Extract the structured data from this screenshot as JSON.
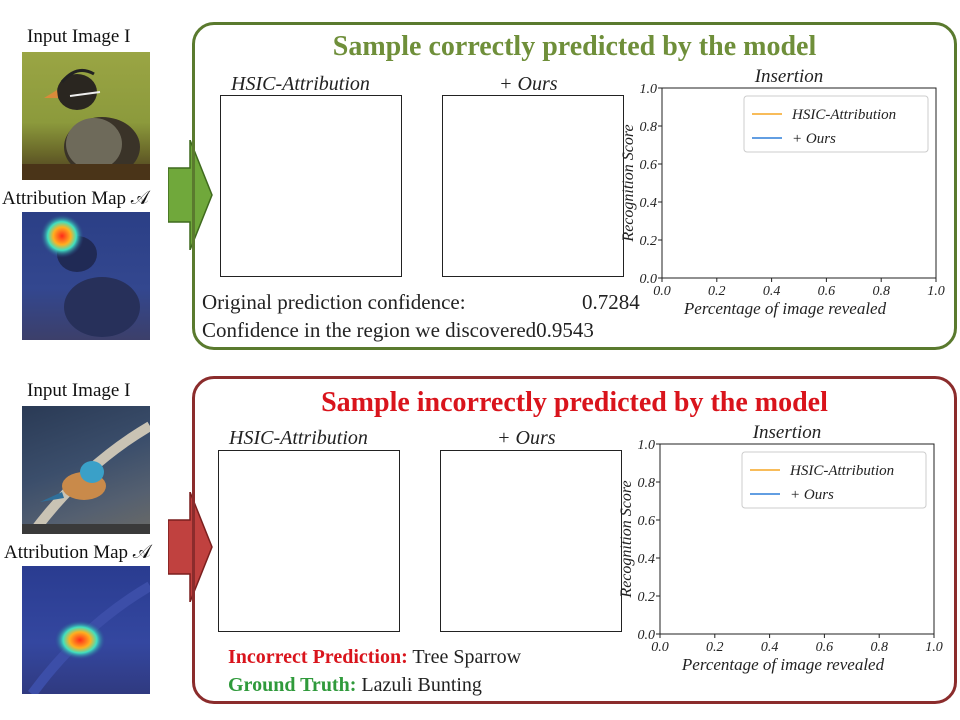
{
  "left_labels": {
    "input_image": "Input Image I",
    "attribution_map": "Attribution Map 𝒜"
  },
  "colors": {
    "correct_border": "#5a7a2e",
    "correct_title": "#6f8f3a",
    "correct_arrow": "#70a83b",
    "incorrect_border": "#8b2c2c",
    "incorrect_title": "#d9141c",
    "incorrect_arrow": "#c0413f",
    "series_hsic": "#f5a623",
    "series_ours": "#2f7fd9",
    "wrong_label": "#d9141c",
    "truth_label": "#2f9a3b"
  },
  "panels": [
    {
      "title": "Sample correctly predicted by the model",
      "sub_left": "HSIC-Attribution",
      "sub_right": "+ Ours",
      "original_label": "Original prediction confidence:",
      "original_value": "0.7284",
      "discovered_label": "Confidence in the region we discovered",
      "discovered_value": "0.9543"
    },
    {
      "title": "Sample incorrectly predicted by the model",
      "sub_left": "HSIC-Attribution",
      "sub_right": "+ Ours",
      "wrong_label": "Incorrect Prediction:",
      "wrong_value": "Tree Sparrow",
      "truth_label": "Ground Truth:",
      "truth_value": "Lazuli Bunting"
    }
  ],
  "chart_data": [
    {
      "type": "line",
      "title": "Insertion",
      "xlabel": "Percentage of image revealed",
      "ylabel": "Recognition Score",
      "xlim": [
        0,
        1
      ],
      "ylim": [
        0,
        1
      ],
      "x_ticks": [
        "0.0",
        "0.2",
        "0.4",
        "0.6",
        "0.8",
        "1.0"
      ],
      "y_ticks": [
        "0.0",
        "0.2",
        "0.4",
        "0.6",
        "0.8",
        "1.0"
      ],
      "legend": "top-right",
      "grid": false,
      "series": [
        {
          "name": "HSIC-Attribution",
          "x": [],
          "values": []
        },
        {
          "name": "+ Ours",
          "x": [],
          "values": []
        }
      ]
    },
    {
      "type": "line",
      "title": "Insertion",
      "xlabel": "Percentage of image revealed",
      "ylabel": "Recognition Score",
      "xlim": [
        0,
        1
      ],
      "ylim": [
        0,
        1
      ],
      "x_ticks": [
        "0.0",
        "0.2",
        "0.4",
        "0.6",
        "0.8",
        "1.0"
      ],
      "y_ticks": [
        "0.0",
        "0.2",
        "0.4",
        "0.6",
        "0.8",
        "1.0"
      ],
      "legend": "top-right",
      "grid": false,
      "series": [
        {
          "name": "HSIC-Attribution",
          "x": [],
          "values": []
        },
        {
          "name": "+ Ours",
          "x": [],
          "values": []
        }
      ]
    }
  ]
}
